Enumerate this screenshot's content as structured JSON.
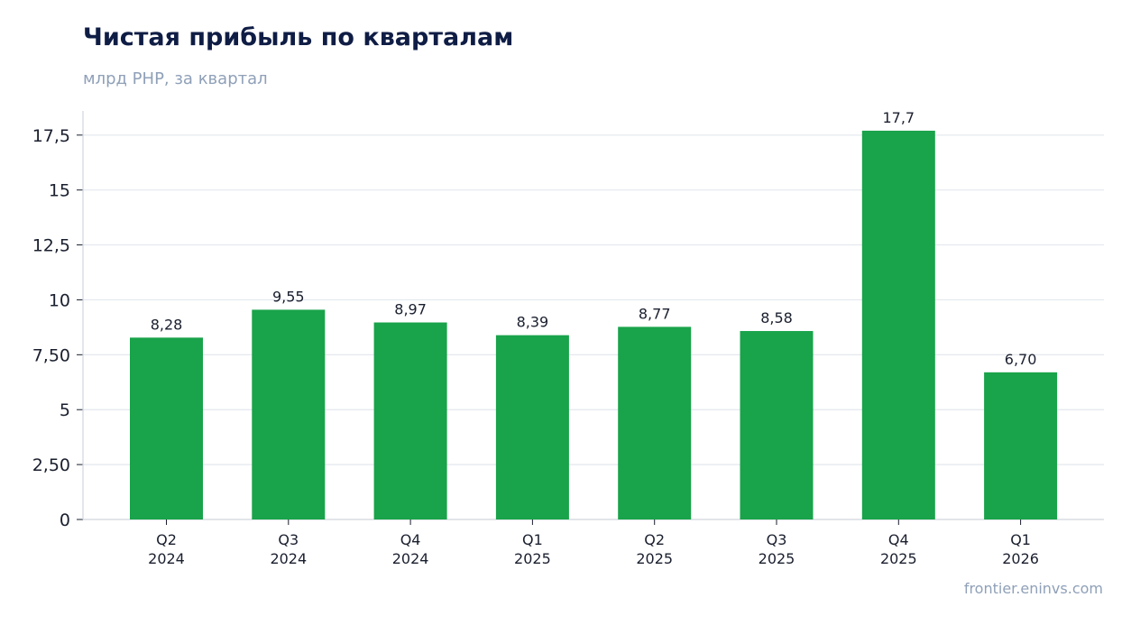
{
  "title": "Чистая прибыль по кварталам",
  "subtitle": "млрд РНР, за квартал",
  "source": "frontier.eninvs.com",
  "colors": {
    "bar": "#19a34a",
    "grid": "#e3e7ee",
    "axis": "#d0d5de",
    "text": "#1a1f2e"
  },
  "chart_data": {
    "type": "bar",
    "title": "Чистая прибыль по кварталам",
    "subtitle": "млрд РНР, за квартал",
    "categories": [
      [
        "Q2",
        "2024"
      ],
      [
        "Q3",
        "2024"
      ],
      [
        "Q4",
        "2024"
      ],
      [
        "Q1",
        "2025"
      ],
      [
        "Q2",
        "2025"
      ],
      [
        "Q3",
        "2025"
      ],
      [
        "Q4",
        "2025"
      ],
      [
        "Q1",
        "2026"
      ]
    ],
    "values": [
      8.28,
      9.55,
      8.97,
      8.39,
      8.77,
      8.58,
      17.7,
      6.7
    ],
    "data_labels": [
      "8,28",
      "9,55",
      "8,97",
      "8,39",
      "8,77",
      "8,58",
      "17,7",
      "6,70"
    ],
    "yticks": [
      0,
      2.5,
      5,
      7.5,
      10,
      12.5,
      15,
      17.5
    ],
    "ytick_labels": [
      "0",
      "2,50",
      "5",
      "7,50",
      "10",
      "12,5",
      "15",
      "17,5"
    ],
    "ylim": [
      0,
      18.6
    ],
    "grid": true,
    "legend": "none"
  }
}
